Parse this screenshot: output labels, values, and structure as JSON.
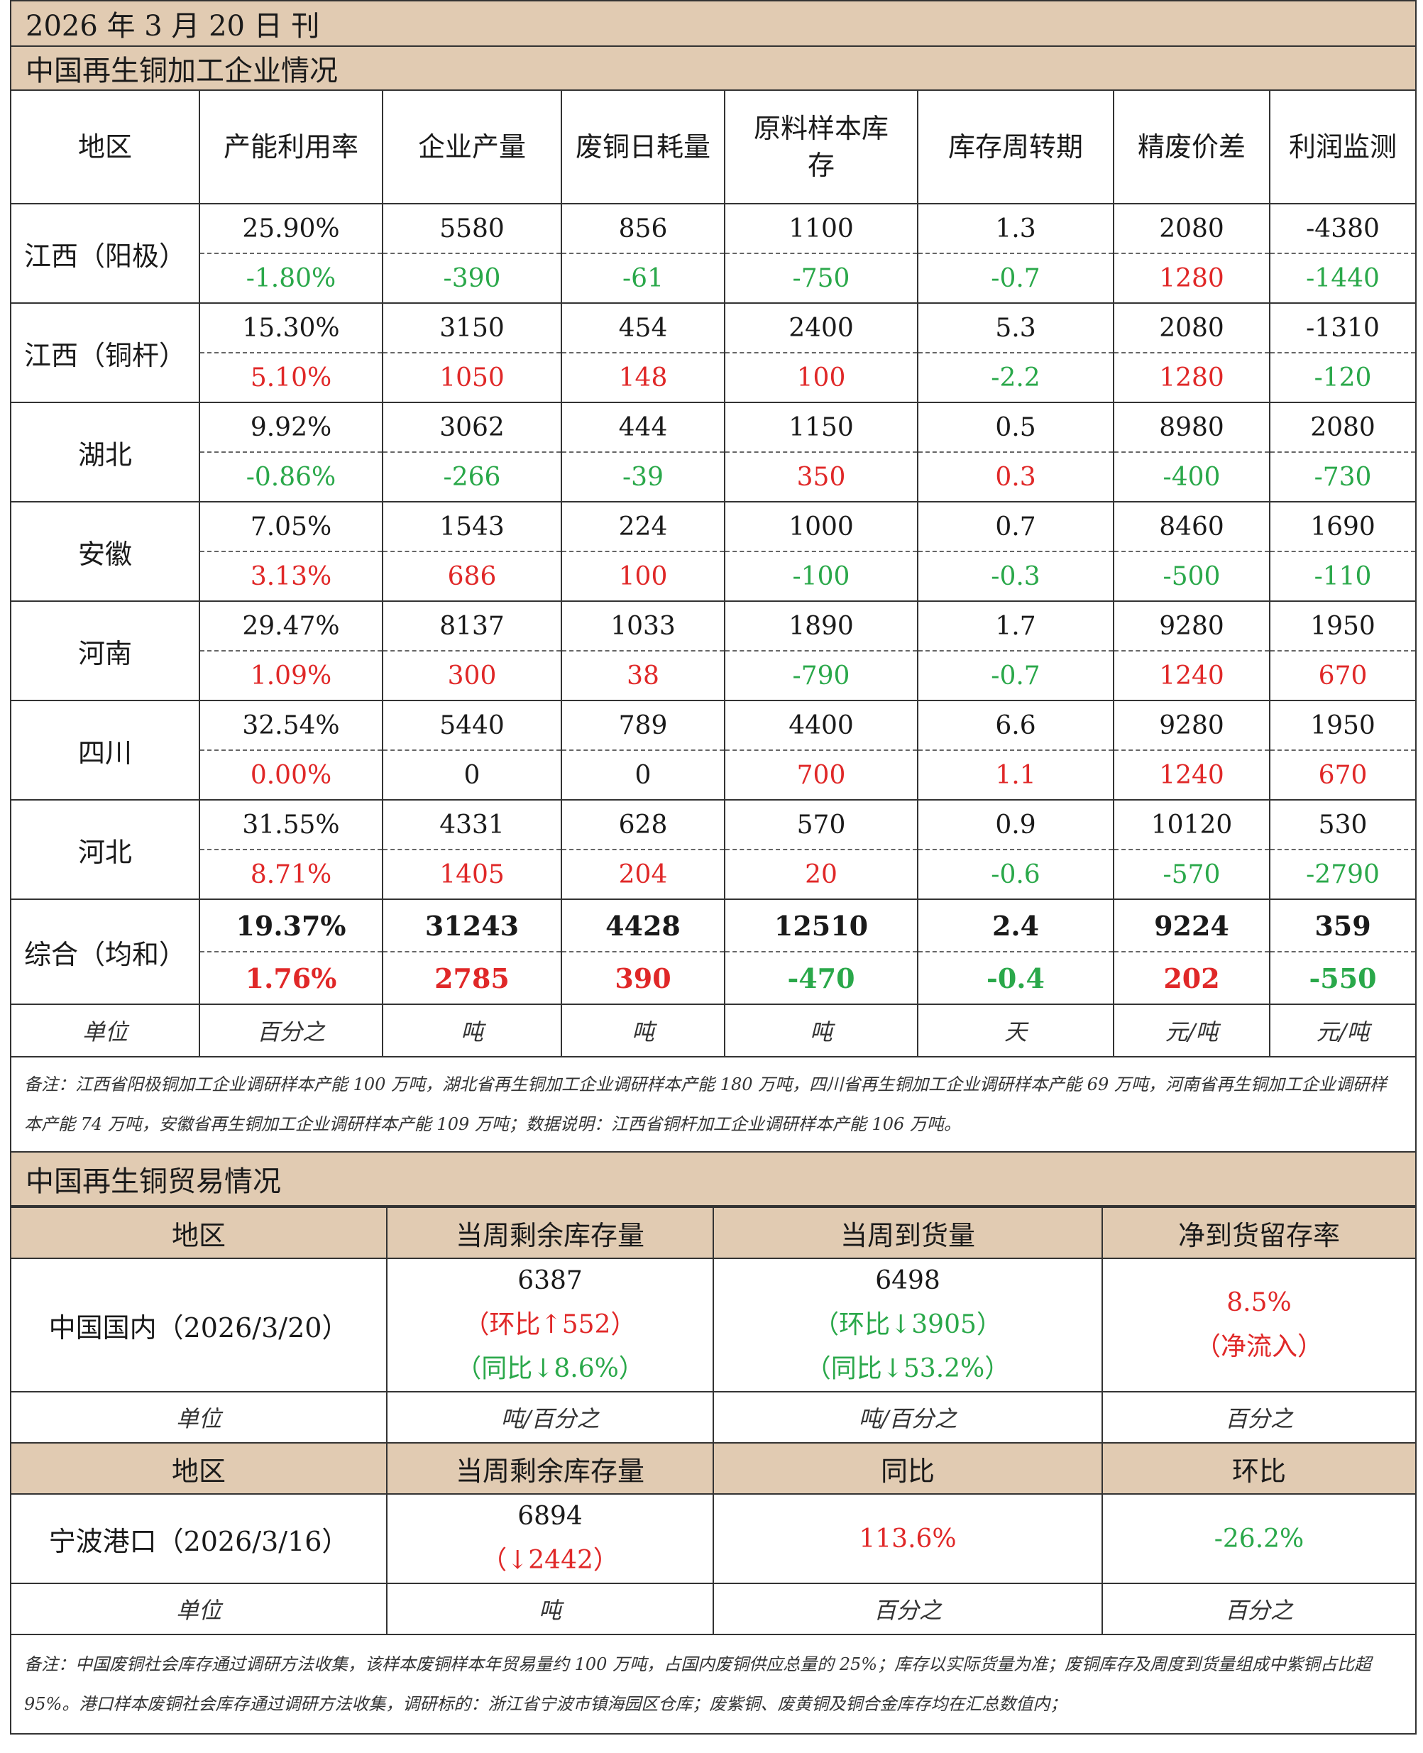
{
  "header_date": "2026 年 3 月 20 日  刊",
  "section1_title": "中国再生铜加工企业情况",
  "columns": [
    "地区",
    "产能利用率",
    "企业产量",
    "废铜日耗量",
    "原料样本库存",
    "库存周转期",
    "精废价差",
    "利润监测"
  ],
  "rows": [
    {
      "region": "江西（阳极）",
      "top": [
        "25.90%",
        "5580",
        "856",
        "1100",
        "1.3",
        "2080",
        "-4380"
      ],
      "bottom": [
        "-1.80%",
        "-390",
        "-61",
        "-750",
        "-0.7",
        "1280",
        "-1440"
      ],
      "bottom_colors": [
        "green",
        "green",
        "green",
        "green",
        "green",
        "red",
        "green"
      ]
    },
    {
      "region": "江西（铜杆）",
      "top": [
        "15.30%",
        "3150",
        "454",
        "2400",
        "5.3",
        "2080",
        "-1310"
      ],
      "bottom": [
        "5.10%",
        "1050",
        "148",
        "100",
        "-2.2",
        "1280",
        "-120"
      ],
      "bottom_colors": [
        "red",
        "red",
        "red",
        "red",
        "green",
        "red",
        "green"
      ]
    },
    {
      "region": "湖北",
      "top": [
        "9.92%",
        "3062",
        "444",
        "1150",
        "0.5",
        "8980",
        "2080"
      ],
      "bottom": [
        "-0.86%",
        "-266",
        "-39",
        "350",
        "0.3",
        "-400",
        "-730"
      ],
      "bottom_colors": [
        "green",
        "green",
        "green",
        "red",
        "red",
        "green",
        "green"
      ]
    },
    {
      "region": "安徽",
      "top": [
        "7.05%",
        "1543",
        "224",
        "1000",
        "0.7",
        "8460",
        "1690"
      ],
      "bottom": [
        "3.13%",
        "686",
        "100",
        "-100",
        "-0.3",
        "-500",
        "-110"
      ],
      "bottom_colors": [
        "red",
        "red",
        "red",
        "green",
        "green",
        "green",
        "green"
      ]
    },
    {
      "region": "河南",
      "top": [
        "29.47%",
        "8137",
        "1033",
        "1890",
        "1.7",
        "9280",
        "1950"
      ],
      "bottom": [
        "1.09%",
        "300",
        "38",
        "-790",
        "-0.7",
        "1240",
        "670"
      ],
      "bottom_colors": [
        "red",
        "red",
        "red",
        "green",
        "green",
        "red",
        "red"
      ]
    },
    {
      "region": "四川",
      "top": [
        "32.54%",
        "5440",
        "789",
        "4400",
        "6.6",
        "9280",
        "1950"
      ],
      "bottom": [
        "0.00%",
        "0",
        "0",
        "700",
        "1.1",
        "1240",
        "670"
      ],
      "bottom_colors": [
        "red",
        "black",
        "black",
        "red",
        "red",
        "red",
        "red"
      ]
    },
    {
      "region": "河北",
      "top": [
        "31.55%",
        "4331",
        "628",
        "570",
        "0.9",
        "10120",
        "530"
      ],
      "bottom": [
        "8.71%",
        "1405",
        "204",
        "20",
        "-0.6",
        "-570",
        "-2790"
      ],
      "bottom_colors": [
        "red",
        "red",
        "red",
        "red",
        "green",
        "green",
        "green"
      ]
    }
  ],
  "summary": {
    "region": "综合（均和）",
    "top": [
      "19.37%",
      "31243",
      "4428",
      "12510",
      "2.4",
      "9224",
      "359"
    ],
    "bottom": [
      "1.76%",
      "2785",
      "390",
      "-470",
      "-0.4",
      "202",
      "-550"
    ],
    "bottom_colors": [
      "red",
      "red",
      "red",
      "green",
      "green",
      "red",
      "green"
    ]
  },
  "units": [
    "单位",
    "百分之",
    "吨",
    "吨",
    "吨",
    "天",
    "元/吨",
    "元/吨"
  ],
  "note1": "备注：江西省阳极铜加工企业调研样本产能 100 万吨，湖北省再生铜加工企业调研样本产能 180 万吨，四川省再生铜加工企业调研样本产能 69 万吨，河南省再生铜加工企业调研样本产能 74 万吨，安徽省再生铜加工企业调研样本产能 109 万吨；数据说明：江西省铜杆加工企业调研样本产能 106 万吨。",
  "section2_title": "中国再生铜贸易情况",
  "trade_header": [
    "地区",
    "当周剩余库存量",
    "当周到货量",
    "净到货留存率"
  ],
  "domestic": {
    "region": "中国国内（2026/3/20）",
    "stock": "6387",
    "stock_mom": "（环比↑552）",
    "stock_yoy": "（同比↓8.6%）",
    "arrival": "6498",
    "arrival_mom": "（环比↓3905）",
    "arrival_yoy": "（同比↓53.2%）",
    "rate": "8.5%",
    "rate_note": "（净流入）"
  },
  "trade_units": [
    "单位",
    "吨/百分之",
    "吨/百分之",
    "百分之"
  ],
  "port_header": [
    "地区",
    "当周剩余库存量",
    "同比",
    "环比"
  ],
  "port": {
    "region": "宁波港口（2026/3/16）",
    "stock": "6894",
    "stock_change": "（↓2442）",
    "yoy": "113.6%",
    "mom": "-26.2%"
  },
  "port_units": [
    "单位",
    "吨",
    "百分之",
    "百分之"
  ],
  "note2": "备注：中国废铜社会库存通过调研方法收集，该样本废铜样本年贸易量约 100 万吨，占国内废铜供应总量的 25%；库存以实际货量为准；废铜库存及周度到货量组成中紫铜占比超 95%。港口样本废铜社会库存通过调研方法收集，调研标的：浙江省宁波市镇海园区仓库；废紫铜、废黄铜及铜合金库存均在汇总数值内；"
}
